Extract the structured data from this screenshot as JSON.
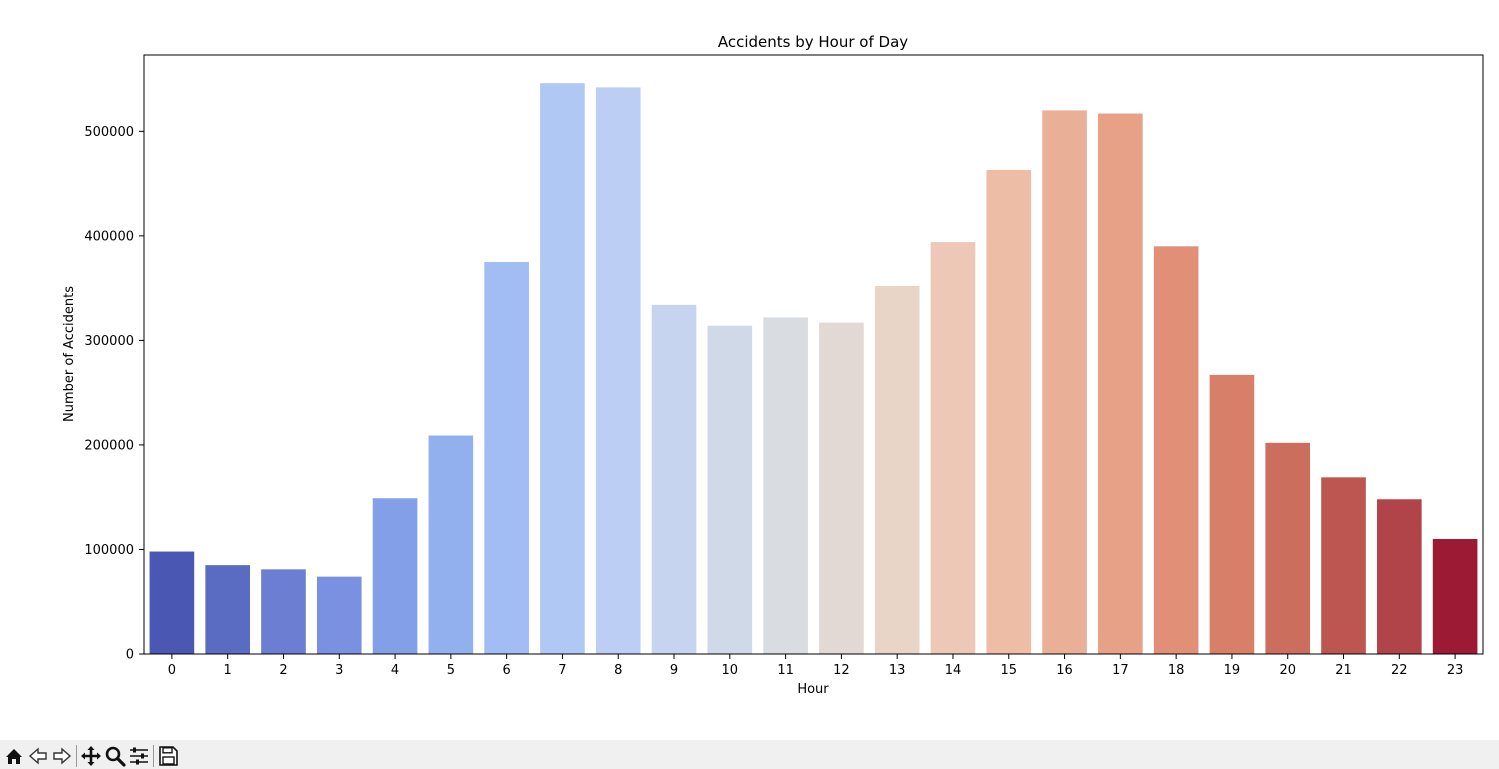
{
  "chart_data": {
    "type": "bar",
    "title": "Accidents by Hour of Day",
    "xlabel": "Hour",
    "ylabel": "Number of Accidents",
    "categories": [
      "0",
      "1",
      "2",
      "3",
      "4",
      "5",
      "6",
      "7",
      "8",
      "9",
      "10",
      "11",
      "12",
      "13",
      "14",
      "15",
      "16",
      "17",
      "18",
      "19",
      "20",
      "21",
      "22",
      "23"
    ],
    "values": [
      98000,
      85000,
      81000,
      74000,
      149000,
      209000,
      375000,
      546000,
      542000,
      334000,
      314000,
      322000,
      317000,
      352000,
      394000,
      463000,
      520000,
      517000,
      390000,
      267000,
      202000,
      169000,
      148000,
      110000
    ],
    "ylim": [
      0,
      573000
    ],
    "yticks": [
      0,
      100000,
      200000,
      300000,
      400000,
      500000
    ],
    "ytick_labels": [
      "0",
      "100000",
      "200000",
      "300000",
      "400000",
      "500000"
    ],
    "colors": [
      "#4a57b3",
      "#5a6cc2",
      "#6b7ed2",
      "#7a90e0",
      "#839fe7",
      "#93b0ee",
      "#a2bdf3",
      "#b0c8f4",
      "#bccef3",
      "#c6d4ef",
      "#d0d9e8",
      "#d9dce0",
      "#e2d9d5",
      "#e9d4c8",
      "#edc8b6",
      "#edbda5",
      "#eab097",
      "#e6a186",
      "#e18f76",
      "#d87f69",
      "#cc6e5e",
      "#bd5551",
      "#b04449",
      "#9c1a34"
    ],
    "grid": false,
    "legend": "none"
  },
  "toolbar": {
    "icons": [
      "home-icon",
      "back-arrow-icon",
      "forward-arrow-icon",
      "pan-icon",
      "zoom-icon",
      "configure-subplots-icon",
      "save-icon"
    ]
  }
}
